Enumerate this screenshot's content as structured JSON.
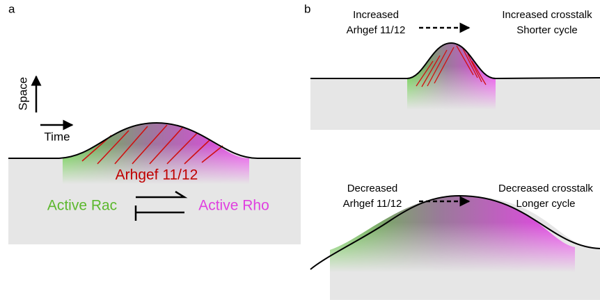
{
  "panels": [
    {
      "label": "a",
      "axes": {
        "y": "Space",
        "x": "Time"
      },
      "protein": "Arhgef 11/12",
      "left": "Active Rac",
      "right": "Active Rho"
    },
    {
      "label": "b",
      "cases": [
        {
          "cause": [
            "Increased",
            "Arhgef 11/12"
          ],
          "effect": [
            "Increased crosstalk",
            "Shorter cycle"
          ]
        },
        {
          "cause": [
            "Decreased",
            "Arhgef 11/12"
          ],
          "effect": [
            "Decreased crosstalk",
            "Longer cycle"
          ]
        }
      ]
    }
  ]
}
